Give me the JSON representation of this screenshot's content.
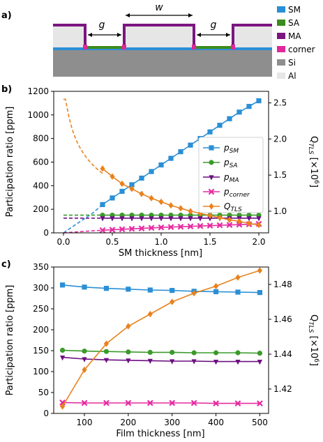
{
  "panels": {
    "a": {
      "label": "a)",
      "g_label": "g",
      "w_label": "w",
      "legend": [
        {
          "name": "SM",
          "color": "#2a8fd6"
        },
        {
          "name": "SA",
          "color": "#3b8c1e"
        },
        {
          "name": "MA",
          "color": "#7b1580"
        },
        {
          "name": "corner",
          "color": "#e0289b"
        },
        {
          "name": "Si",
          "color": "#8e8e8e"
        },
        {
          "name": "Al",
          "color": "#e6e6e6"
        }
      ]
    },
    "b": {
      "label": "b)"
    },
    "c": {
      "label": "c)"
    }
  },
  "colors": {
    "SM": "#2a8fd6",
    "SA": "#3b9a2a",
    "MA": "#6b0f80",
    "corner": "#e62aa0",
    "Q": "#e8821e"
  },
  "chart_data": [
    {
      "type": "line",
      "panel": "b",
      "xlabel": "SM thickness [nm]",
      "ylabel": "Participation ratio [ppm]",
      "y2label": "Q_TLS [×10^6]",
      "xlim": [
        -0.1,
        2.1
      ],
      "ylim": [
        0,
        1200
      ],
      "y2lim": [
        0.7,
        2.66
      ],
      "xticks": [
        "0.0",
        "0.5",
        "1.0",
        "1.5",
        "2.0"
      ],
      "yticks": [
        "0",
        "200",
        "400",
        "600",
        "800",
        "1000",
        "1200"
      ],
      "y2ticks": [
        "1.0",
        "1.5",
        "2.0",
        "2.5"
      ],
      "legend": [
        "p_SM",
        "p_SA",
        "p_MA",
        "p_corner",
        "Q_TLS"
      ],
      "legend_position": "right",
      "x": [
        0.4,
        0.5,
        0.6,
        0.7,
        0.8,
        0.9,
        1.0,
        1.1,
        1.2,
        1.3,
        1.4,
        1.5,
        1.6,
        1.7,
        1.8,
        1.9,
        2.0
      ],
      "series": [
        {
          "name": "p_SM",
          "values": [
            240,
            296,
            352,
            408,
            464,
            520,
            576,
            632,
            688,
            744,
            800,
            856,
            912,
            968,
            1024,
            1072,
            1120
          ]
        },
        {
          "name": "p_SA",
          "values": [
            150,
            150,
            150,
            150,
            150,
            150,
            150,
            150,
            150,
            150,
            150,
            150,
            150,
            150,
            150,
            150,
            150
          ]
        },
        {
          "name": "p_MA",
          "values": [
            125,
            125,
            125,
            125,
            125,
            125,
            125,
            125,
            125,
            125,
            125,
            125,
            125,
            125,
            125,
            125,
            125
          ]
        },
        {
          "name": "p_corner",
          "values": [
            22,
            26,
            30,
            34,
            38,
            42,
            46,
            49,
            52,
            55,
            58,
            61,
            64,
            67,
            70,
            73,
            76
          ]
        },
        {
          "name": "Q_TLS",
          "axis": "right",
          "values": [
            1.59,
            1.48,
            1.38,
            1.31,
            1.24,
            1.18,
            1.13,
            1.08,
            1.04,
            1.0,
            0.97,
            0.94,
            0.91,
            0.88,
            0.86,
            0.83,
            0.81
          ]
        }
      ],
      "dashed_extrapolation": {
        "x": [
          0.0,
          0.1,
          0.2,
          0.3,
          0.4
        ],
        "p_SM": [
          0,
          56,
          112,
          168,
          240
        ],
        "p_SA": [
          150,
          150,
          150,
          150,
          150
        ],
        "p_MA": [
          125,
          125,
          125,
          125,
          125
        ],
        "p_corner": [
          0,
          6,
          12,
          17,
          22
        ],
        "Q_TLS": [
          2.55,
          2.2,
          1.96,
          1.76,
          1.59
        ]
      }
    },
    {
      "type": "line",
      "panel": "c",
      "xlabel": "Film thickness [nm]",
      "ylabel": "Participation ratio [ppm]",
      "y2label": "Q_TLS [×10^6]",
      "xlim": [
        30,
        520
      ],
      "ylim": [
        0,
        350
      ],
      "y2lim": [
        1.406,
        1.49
      ],
      "xticks": [
        "100",
        "200",
        "300",
        "400",
        "500"
      ],
      "yticks": [
        "0",
        "50",
        "100",
        "150",
        "200",
        "250",
        "300",
        "350"
      ],
      "y2ticks": [
        "1.42",
        "1.44",
        "1.46",
        "1.48"
      ],
      "x": [
        50,
        100,
        150,
        200,
        250,
        300,
        350,
        400,
        450,
        500
      ],
      "series": [
        {
          "name": "p_SM",
          "values": [
            307,
            302,
            299,
            297,
            295,
            294,
            292,
            291,
            290,
            289
          ]
        },
        {
          "name": "p_SA",
          "values": [
            151,
            149,
            148,
            147,
            146,
            146,
            145,
            145,
            145,
            144
          ]
        },
        {
          "name": "p_MA",
          "values": [
            134,
            130,
            128,
            127,
            126,
            125,
            125,
            124,
            124,
            124
          ]
        },
        {
          "name": "p_corner",
          "values": [
            26,
            25,
            25,
            25,
            25,
            25,
            25,
            24,
            24,
            24
          ]
        },
        {
          "name": "Q_TLS",
          "axis": "right",
          "values": [
            1.41,
            1.431,
            1.446,
            1.456,
            1.463,
            1.47,
            1.475,
            1.479,
            1.484,
            1.488
          ]
        }
      ]
    }
  ]
}
